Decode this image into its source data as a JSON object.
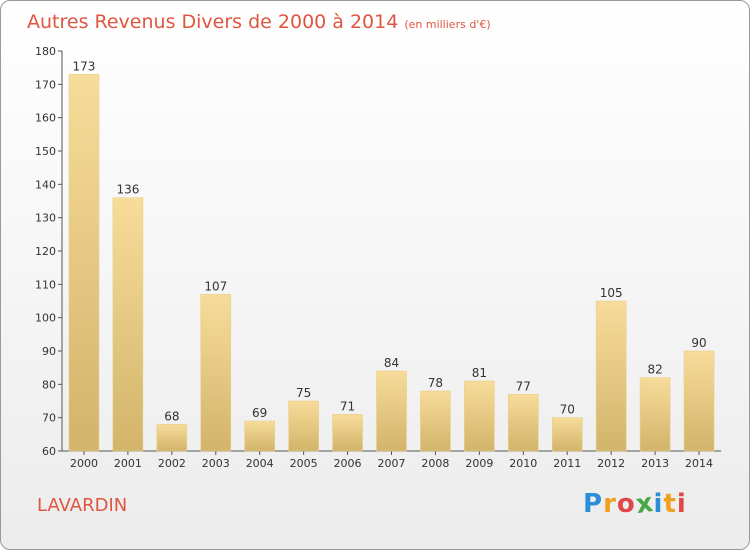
{
  "chart_data": {
    "type": "bar",
    "title": "Autres Revenus Divers de 2000 à 2014",
    "subtitle": "(en milliers d'€)",
    "categories": [
      "2000",
      "2001",
      "2002",
      "2003",
      "2004",
      "2005",
      "2006",
      "2007",
      "2008",
      "2009",
      "2010",
      "2011",
      "2012",
      "2013",
      "2014"
    ],
    "values": [
      173,
      136,
      68,
      107,
      69,
      75,
      71,
      84,
      78,
      81,
      77,
      70,
      105,
      82,
      90
    ],
    "ylim": [
      60,
      180
    ],
    "yticks": [
      60,
      70,
      80,
      90,
      100,
      110,
      120,
      130,
      140,
      150,
      160,
      170,
      180
    ],
    "xlabel": "",
    "ylabel": "",
    "grid": false,
    "bar_color": "#e8c878"
  },
  "place": "LAVARDIN",
  "logo": {
    "letters": [
      "P",
      "r",
      "o",
      "x",
      "i",
      "t",
      "i"
    ],
    "colors": [
      "#2a8fd6",
      "#f0a020",
      "#e04848",
      "#46a846",
      "#2a8fd6",
      "#f0a020",
      "#e04848"
    ]
  }
}
